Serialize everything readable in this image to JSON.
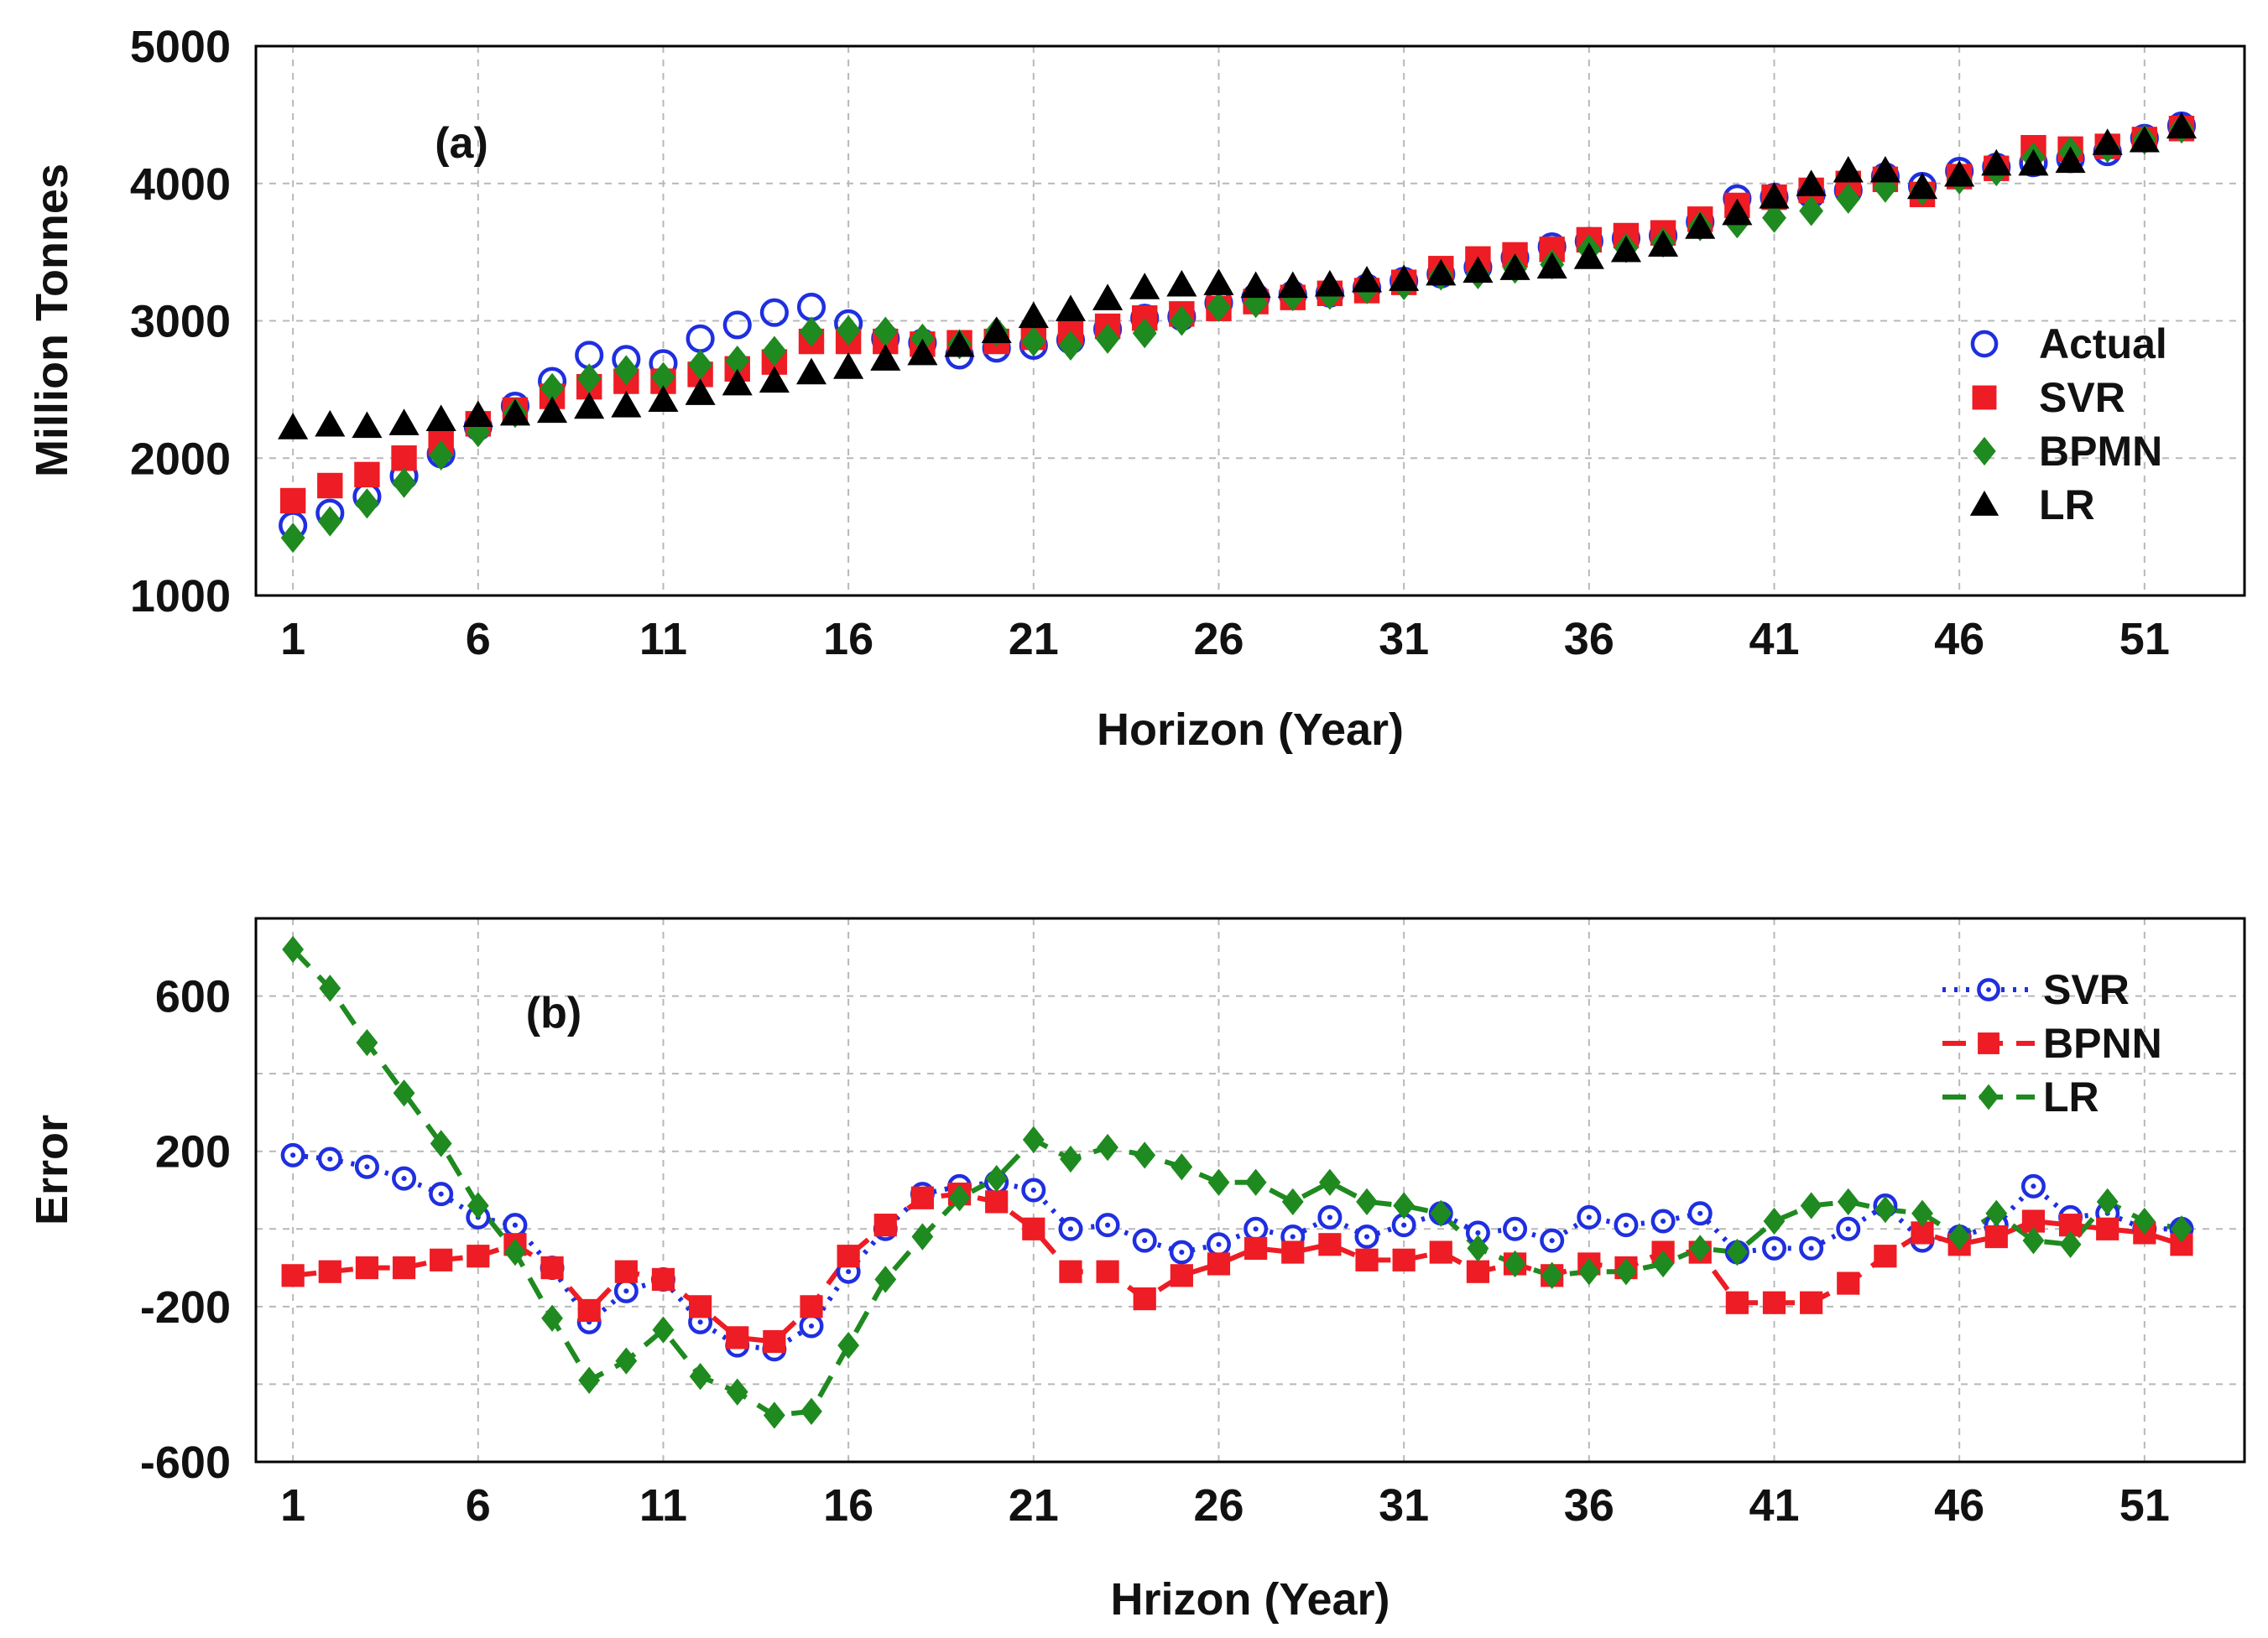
{
  "chart_data": [
    {
      "type": "scatter",
      "panel_label": "(a)",
      "ylabel": "Million Tonnes",
      "xlabel": "Horizon (Year)",
      "xlim": [
        0,
        53.7
      ],
      "ylim": [
        1000,
        5000
      ],
      "x_ticks": [
        1,
        6,
        11,
        16,
        21,
        26,
        31,
        36,
        41,
        46,
        51
      ],
      "x_tick_labels": [
        "1",
        "6",
        "11",
        "16",
        "21",
        "26",
        "31",
        "36",
        "41",
        "46",
        "51"
      ],
      "y_ticks": [
        1000,
        2000,
        3000,
        4000,
        5000
      ],
      "y_tick_labels": [
        "1000",
        "2000",
        "3000",
        "4000",
        "5000"
      ],
      "grid": true,
      "legend_position": "right",
      "series": [
        {
          "name": "Actual",
          "marker": "circle-open",
          "color": "#1f2fe0",
          "values": [
            1510,
            1600,
            1720,
            1870,
            2030,
            2230,
            2380,
            2560,
            2750,
            2720,
            2690,
            2870,
            2970,
            3060,
            3100,
            2980,
            2870,
            2840,
            2750,
            2800,
            2820,
            2860,
            2940,
            3020,
            3030,
            3130,
            3170,
            3190,
            3200,
            3240,
            3290,
            3340,
            3390,
            3460,
            3540,
            3580,
            3600,
            3620,
            3720,
            3890,
            3900,
            3920,
            3950,
            4050,
            3980,
            4090,
            4120,
            4150,
            4180,
            4230,
            4330,
            4420
          ]
        },
        {
          "name": "SVR",
          "marker": "square",
          "color": "#ee1c24",
          "values": [
            1690,
            1800,
            1880,
            2000,
            2110,
            2250,
            2350,
            2450,
            2520,
            2560,
            2560,
            2610,
            2650,
            2700,
            2850,
            2850,
            2850,
            2830,
            2840,
            2850,
            2880,
            2920,
            2960,
            3020,
            3050,
            3090,
            3140,
            3170,
            3200,
            3220,
            3280,
            3380,
            3450,
            3480,
            3520,
            3590,
            3620,
            3640,
            3740,
            3840,
            3900,
            3950,
            4000,
            4030,
            3920,
            4050,
            4110,
            4260,
            4250,
            4270,
            4320,
            4400
          ]
        },
        {
          "name": "BPMN",
          "marker": "diamond",
          "color": "#1f8a1f",
          "values": [
            1420,
            1540,
            1670,
            1820,
            2020,
            2190,
            2330,
            2510,
            2580,
            2640,
            2590,
            2680,
            2710,
            2780,
            2920,
            2930,
            2920,
            2870,
            2830,
            2920,
            2850,
            2820,
            2870,
            2910,
            3000,
            3100,
            3130,
            3180,
            3190,
            3230,
            3260,
            3330,
            3340,
            3380,
            3410,
            3520,
            3530,
            3570,
            3690,
            3710,
            3750,
            3800,
            3890,
            3970,
            3950,
            4030,
            4090,
            4190,
            4230,
            4260,
            4320,
            4400
          ]
        },
        {
          "name": "LR",
          "marker": "triangle",
          "color": "#000000",
          "values": [
            2220,
            2240,
            2230,
            2250,
            2280,
            2310,
            2320,
            2340,
            2370,
            2380,
            2420,
            2470,
            2540,
            2560,
            2620,
            2660,
            2720,
            2760,
            2820,
            2920,
            3030,
            3080,
            3160,
            3240,
            3260,
            3270,
            3250,
            3250,
            3260,
            3290,
            3300,
            3340,
            3360,
            3380,
            3390,
            3460,
            3510,
            3550,
            3680,
            3780,
            3900,
            3990,
            4090,
            4090,
            3970,
            4060,
            4140,
            4140,
            4160,
            4290,
            4310,
            4410
          ]
        }
      ]
    },
    {
      "type": "line",
      "panel_label": "(b)",
      "ylabel": "Error",
      "xlabel": "Hrizon (Year)",
      "xlim": [
        0,
        53.7
      ],
      "ylim": [
        -600,
        800
      ],
      "x_ticks": [
        1,
        6,
        11,
        16,
        21,
        26,
        31,
        36,
        41,
        46,
        51
      ],
      "x_tick_labels": [
        "1",
        "6",
        "11",
        "16",
        "21",
        "26",
        "31",
        "36",
        "41",
        "46",
        "51"
      ],
      "y_ticks": [
        -600,
        -200,
        200,
        600
      ],
      "y_tick_labels": [
        "-600",
        "-200",
        "200",
        "600"
      ],
      "grid": true,
      "legend_position": "top-right",
      "series": [
        {
          "name": "SVR",
          "line_style": "dotted",
          "marker": "circle-dot",
          "color": "#1f2fe0",
          "values": [
            190,
            180,
            160,
            130,
            90,
            30,
            10,
            -100,
            -240,
            -160,
            -130,
            -240,
            -300,
            -310,
            -250,
            -110,
            0,
            90,
            110,
            120,
            100,
            0,
            10,
            -30,
            -60,
            -40,
            0,
            -20,
            30,
            -20,
            10,
            40,
            -10,
            0,
            -30,
            30,
            10,
            20,
            40,
            -60,
            -50,
            -50,
            0,
            60,
            -30,
            -20,
            10,
            110,
            30,
            40,
            0,
            0
          ]
        },
        {
          "name": "BPNN",
          "line_style": "dashed",
          "marker": "square",
          "color": "#ee1c24",
          "values": [
            -120,
            -110,
            -100,
            -100,
            -80,
            -70,
            -40,
            -100,
            -210,
            -110,
            -130,
            -200,
            -280,
            -290,
            -200,
            -70,
            10,
            80,
            90,
            70,
            0,
            -110,
            -110,
            -180,
            -120,
            -90,
            -50,
            -60,
            -40,
            -80,
            -80,
            -60,
            -110,
            -90,
            -120,
            -90,
            -100,
            -60,
            -60,
            -190,
            -190,
            -190,
            -140,
            -70,
            -10,
            -40,
            -20,
            20,
            10,
            0,
            -10,
            -40
          ]
        },
        {
          "name": "LR",
          "line_style": "dashed",
          "marker": "diamond",
          "color": "#1f8a1f",
          "values": [
            720,
            620,
            480,
            350,
            220,
            60,
            -60,
            -230,
            -390,
            -340,
            -260,
            -380,
            -420,
            -480,
            -470,
            -300,
            -130,
            -20,
            80,
            130,
            230,
            180,
            210,
            190,
            160,
            120,
            120,
            70,
            120,
            70,
            60,
            40,
            -50,
            -90,
            -120,
            -110,
            -110,
            -90,
            -50,
            -60,
            20,
            60,
            70,
            50,
            40,
            -20,
            40,
            -30,
            -40,
            70,
            20,
            0
          ]
        }
      ]
    }
  ]
}
